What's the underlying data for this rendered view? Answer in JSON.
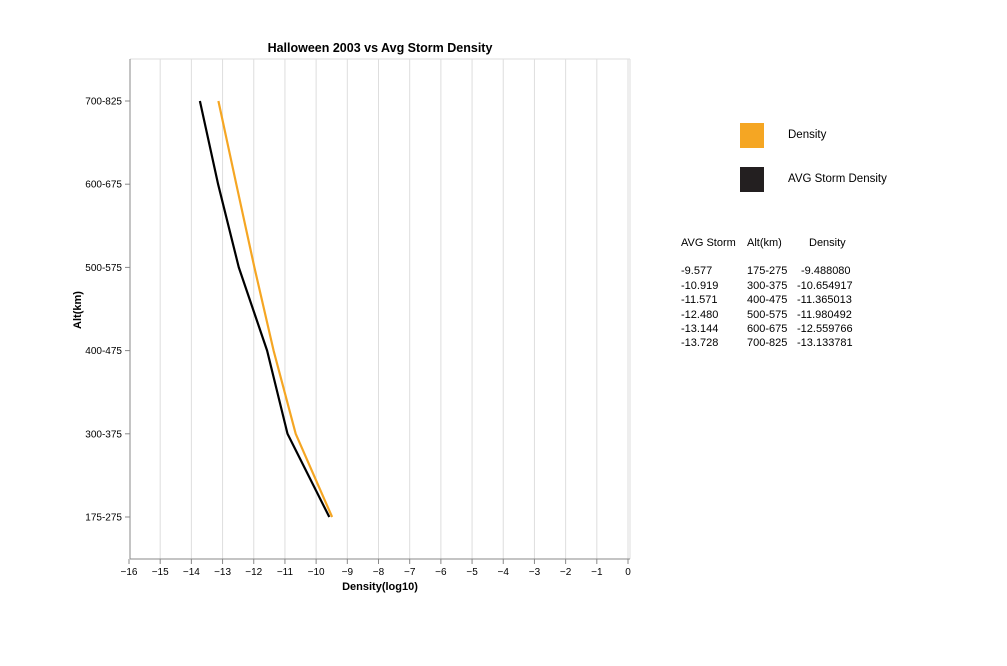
{
  "chart_data": {
    "type": "line",
    "title": "Halloween 2003 vs Avg Storm Density",
    "xlabel": "Density(log10)",
    "ylabel": "Alt(km)",
    "xlim": [
      -16,
      0
    ],
    "x_ticks": [
      "−16",
      "−15",
      "−14",
      "−13",
      "−12",
      "−11",
      "−10",
      "−9",
      "−8",
      "−7",
      "−6",
      "−5",
      "−4",
      "−3",
      "−2",
      "−1",
      "0"
    ],
    "categories": [
      "175-275",
      "300-375",
      "400-475",
      "500-575",
      "600-675",
      "700-825"
    ],
    "grid": "vertical",
    "legend_position": "right",
    "series": [
      {
        "name": "Density",
        "color": "#f5a623",
        "values": [
          -9.48808,
          -10.654917,
          -11.365013,
          -11.980492,
          -12.559766,
          -13.133781
        ]
      },
      {
        "name": "AVG Storm Density",
        "color": "#000000",
        "values": [
          -9.577,
          -10.919,
          -11.571,
          -12.48,
          -13.144,
          -13.728
        ]
      }
    ]
  },
  "legend": [
    {
      "label": "Density",
      "color": "#f5a623"
    },
    {
      "label": "AVG Storm Density",
      "color": "#231f20"
    }
  ],
  "table": {
    "headers": [
      "AVG Storm",
      "Alt(km)",
      "Density"
    ],
    "rows": [
      [
        "-9.577",
        "175-275",
        "-9.488080"
      ],
      [
        "-10.919",
        "300-375",
        "-10.654917"
      ],
      [
        "-11.571",
        "400-475",
        "-11.365013"
      ],
      [
        "-12.480",
        "500-575",
        "-11.980492"
      ],
      [
        "-13.144",
        "600-675",
        "-12.559766"
      ],
      [
        "-13.728",
        "700-825",
        "-13.133781"
      ]
    ]
  }
}
